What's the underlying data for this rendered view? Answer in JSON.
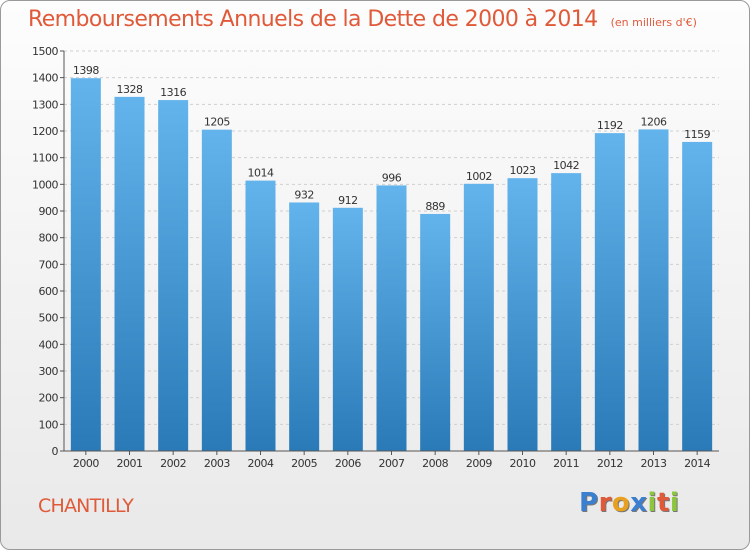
{
  "header": {
    "title": "Remboursements Annuels de la Dette de 2000 à 2014",
    "subtitle": "(en milliers d'€)"
  },
  "commune": "CHANTILLY",
  "logo": {
    "letters": [
      {
        "char": "P",
        "color": "#3a7fd0"
      },
      {
        "char": "r",
        "color": "#e05a3a"
      },
      {
        "char": "o",
        "color": "#e8a020"
      },
      {
        "char": "x",
        "color": "#3a7fd0"
      },
      {
        "char": "i",
        "color": "#8cc63f"
      },
      {
        "char": "t",
        "color": "#e05a3a"
      },
      {
        "char": "i",
        "color": "#8cc63f"
      }
    ]
  },
  "chart_data": {
    "type": "bar",
    "title": "Remboursements Annuels de la Dette de 2000 à 2014",
    "subtitle": "(en milliers d'€)",
    "xlabel": "",
    "ylabel": "",
    "categories": [
      "2000",
      "2001",
      "2002",
      "2003",
      "2004",
      "2005",
      "2006",
      "2007",
      "2008",
      "2009",
      "2010",
      "2011",
      "2012",
      "2013",
      "2014"
    ],
    "values": [
      1398,
      1328,
      1316,
      1205,
      1014,
      932,
      912,
      996,
      889,
      1002,
      1023,
      1042,
      1192,
      1206,
      1159
    ],
    "ylim": [
      0,
      1500
    ],
    "yticks": [
      0,
      100,
      200,
      300,
      400,
      500,
      600,
      700,
      800,
      900,
      1000,
      1100,
      1200,
      1300,
      1400,
      1500
    ],
    "grid": true,
    "legend": "none",
    "bar_color_top": "#63b3ec",
    "bar_color_bottom": "#2a7ab8"
  }
}
